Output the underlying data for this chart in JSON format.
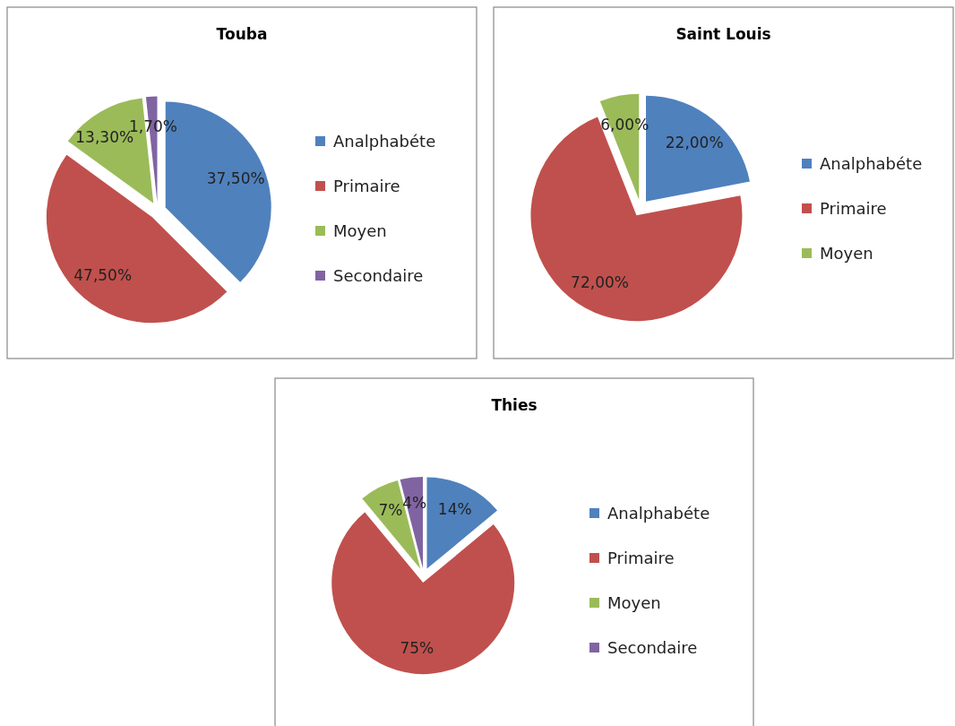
{
  "chart_data": [
    {
      "type": "pie",
      "title": "Touba",
      "categories": [
        "Analphabéte",
        "Primaire",
        "Moyen",
        "Secondaire"
      ],
      "values": [
        37.5,
        47.5,
        13.3,
        1.7
      ],
      "colors": [
        "#4f81bd",
        "#c0504d",
        "#9bbb59",
        "#8064a2"
      ],
      "value_labels": [
        "37,50%",
        "47,50%",
        "13,30%",
        "1,70%"
      ],
      "legend": "right"
    },
    {
      "type": "pie",
      "title": "Saint Louis",
      "categories": [
        "Analphabéte",
        "Primaire",
        "Moyen"
      ],
      "values": [
        22,
        72,
        6
      ],
      "colors": [
        "#4f81bd",
        "#c0504d",
        "#9bbb59"
      ],
      "value_labels": [
        "22,00%",
        "72,00%",
        "6,00%"
      ],
      "legend": "right"
    },
    {
      "type": "pie",
      "title": "Thies",
      "categories": [
        "Analphabéte",
        "Primaire",
        "Moyen",
        "Secondaire"
      ],
      "values": [
        14,
        75,
        7,
        4
      ],
      "colors": [
        "#4f81bd",
        "#c0504d",
        "#9bbb59",
        "#8064a2"
      ],
      "value_labels": [
        "14%",
        "75%",
        "7%",
        "4%"
      ],
      "legend": "right"
    }
  ]
}
